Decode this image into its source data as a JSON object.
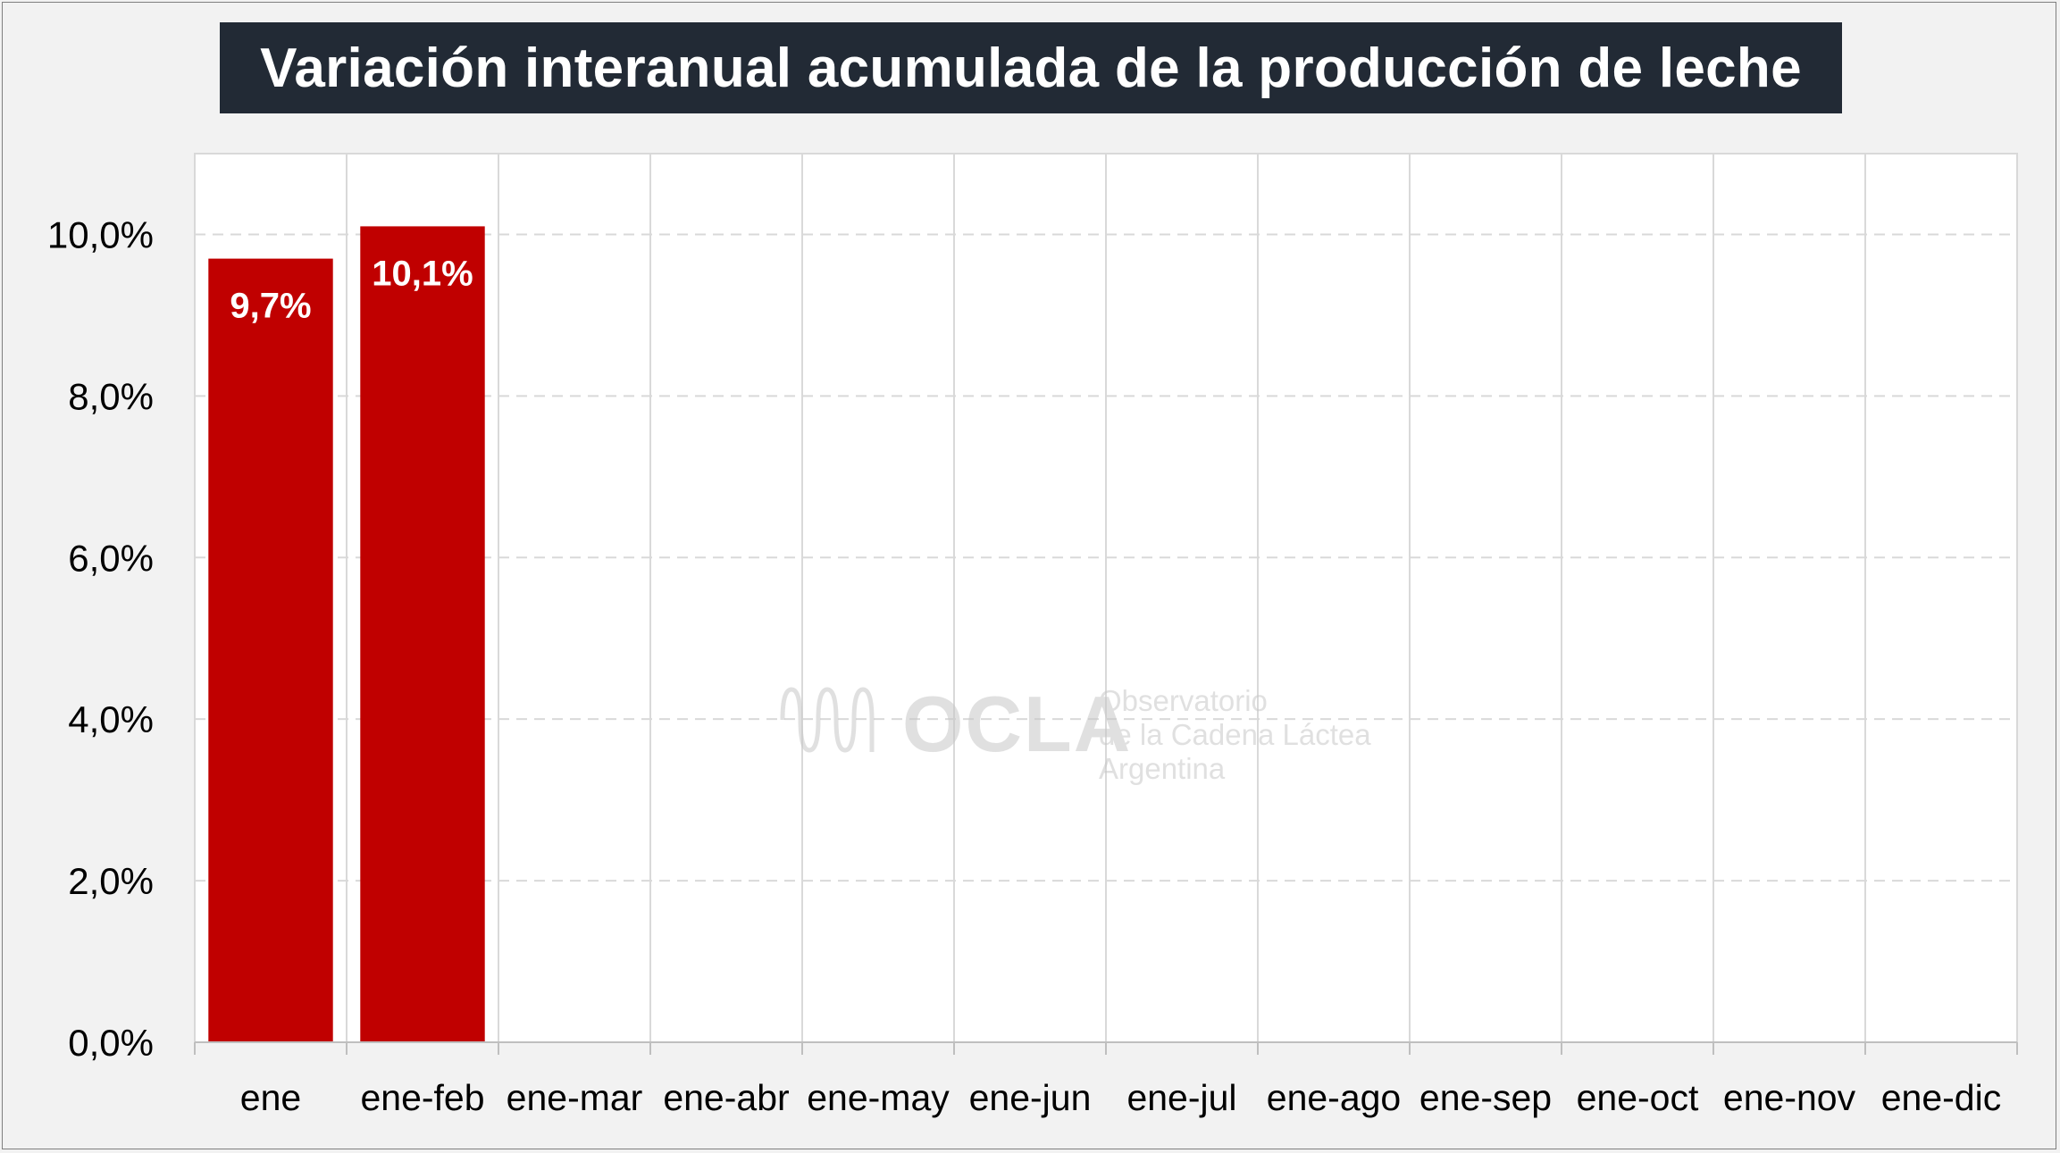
{
  "chart_data": {
    "type": "bar",
    "title": "Variación interanual acumulada de la producción de leche",
    "categories": [
      "ene",
      "ene-feb",
      "ene-mar",
      "ene-abr",
      "ene-may",
      "ene-jun",
      "ene-jul",
      "ene-ago",
      "ene-sep",
      "ene-oct",
      "ene-nov",
      "ene-dic"
    ],
    "series": [
      {
        "values": [
          9.7,
          10.1,
          null,
          null,
          null,
          null,
          null,
          null,
          null,
          null,
          null,
          null
        ]
      }
    ],
    "data_labels": [
      "9,7%",
      "10,1%"
    ],
    "yticks": [
      0,
      2,
      4,
      6,
      8,
      10
    ],
    "ytick_labels": [
      "0,0%",
      "2,0%",
      "4,0%",
      "6,0%",
      "8,0%",
      "10,0%"
    ],
    "ylim": [
      0,
      11
    ],
    "xlabel": "",
    "ylabel": "",
    "grid": true,
    "legend": false,
    "colors": {
      "bar": "#c00000",
      "title_bg": "#222a35",
      "title_text": "#ffffff",
      "plot_bg": "#ffffff",
      "page_bg": "#f2f2f2"
    }
  },
  "watermark": {
    "brand": "OCLA",
    "line1": "Observatorio",
    "line2": "de la Cadena Láctea",
    "line3": "Argentina"
  }
}
